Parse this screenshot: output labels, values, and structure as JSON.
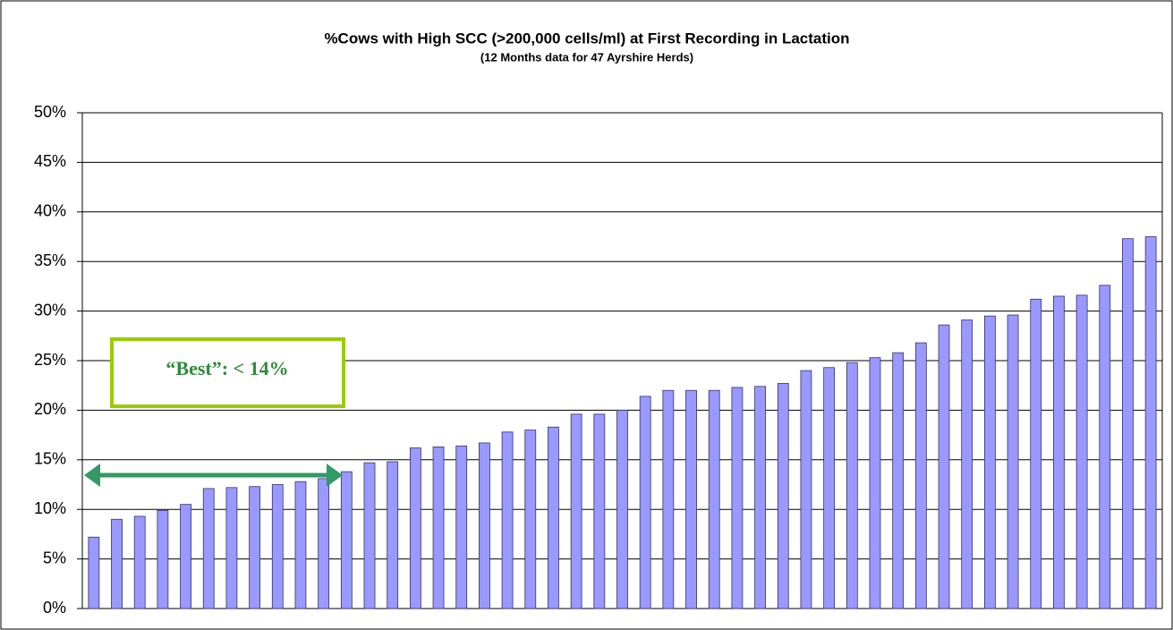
{
  "chart_data": {
    "type": "bar",
    "title": "%Cows with High SCC (>200,000 cells/ml) at First Recording in Lactation",
    "subtitle": "(12 Months data for 47 Ayrshire Herds)",
    "annotations": [
      "“Best”:  < 14%"
    ],
    "categories": [
      null,
      null,
      null,
      null,
      null,
      null,
      null,
      null,
      null,
      null,
      null,
      null,
      null,
      null,
      null,
      null,
      null,
      null,
      null,
      null,
      null,
      null,
      null,
      null,
      null,
      null,
      null,
      null,
      null,
      null,
      null,
      null,
      null,
      null,
      null,
      null,
      null,
      null,
      null,
      null,
      null,
      null,
      null,
      null,
      null,
      null,
      null
    ],
    "values": [
      7.2,
      9.0,
      9.3,
      9.9,
      10.5,
      12.1,
      12.2,
      12.3,
      12.5,
      12.8,
      13.1,
      13.8,
      14.7,
      14.8,
      16.2,
      16.3,
      16.4,
      16.7,
      17.8,
      18.0,
      18.3,
      19.6,
      19.6,
      20.0,
      21.4,
      22.0,
      22.0,
      22.0,
      22.3,
      22.4,
      22.7,
      24.0,
      24.3,
      24.8,
      25.3,
      25.8,
      26.8,
      28.6,
      29.1,
      29.5,
      29.6,
      31.2,
      31.5,
      31.6,
      32.6,
      37.3,
      37.5
    ],
    "color": "#9999ff",
    "ylim": [
      0,
      50
    ],
    "yticks": [
      {
        "value": 0,
        "label": "0%"
      },
      {
        "value": 5,
        "label": "5%"
      },
      {
        "value": 10,
        "label": "10%"
      },
      {
        "value": 15,
        "label": "15%"
      },
      {
        "value": 20,
        "label": "20%"
      },
      {
        "value": 25,
        "label": "25%"
      },
      {
        "value": 30,
        "label": "30%"
      },
      {
        "value": 35,
        "label": "35%"
      },
      {
        "value": 40,
        "label": "40%"
      },
      {
        "value": 45,
        "label": "45%"
      },
      {
        "value": 50,
        "label": "50%"
      }
    ],
    "grid": true
  }
}
